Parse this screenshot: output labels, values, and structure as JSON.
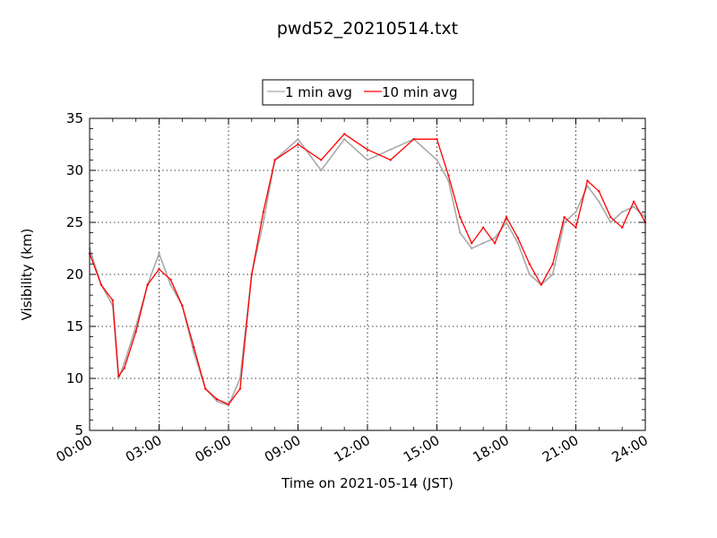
{
  "chart_data": {
    "type": "line",
    "title": "pwd52_20210514.txt",
    "xlabel": "Time on 2021-05-14 (JST)",
    "ylabel": "Visibility (km)",
    "xlim": [
      "00:00",
      "24:00"
    ],
    "ylim": [
      5,
      35
    ],
    "x_ticks": [
      "00:00",
      "03:00",
      "06:00",
      "09:00",
      "12:00",
      "15:00",
      "18:00",
      "21:00",
      "24:00"
    ],
    "y_ticks": [
      "5",
      "10",
      "15",
      "20",
      "25",
      "30",
      "35"
    ],
    "grid": true,
    "legend_position": "top-center",
    "x": [
      "00:00",
      "00:30",
      "01:00",
      "01:15",
      "01:30",
      "02:00",
      "02:30",
      "03:00",
      "03:30",
      "04:00",
      "04:30",
      "05:00",
      "05:30",
      "06:00",
      "06:30",
      "07:00",
      "07:30",
      "08:00",
      "09:00",
      "10:00",
      "11:00",
      "12:00",
      "13:00",
      "14:00",
      "15:00",
      "15:30",
      "16:00",
      "16:30",
      "17:00",
      "17:30",
      "18:00",
      "18:30",
      "19:00",
      "19:30",
      "20:00",
      "20:30",
      "21:00",
      "21:30",
      "22:00",
      "22:30",
      "23:00",
      "23:30",
      "24:00"
    ],
    "series": [
      {
        "name": "1 min avg",
        "color": "#a9a9a9",
        "values": [
          22.5,
          19.0,
          17.0,
          10.0,
          11.5,
          15.0,
          19.0,
          22.0,
          19.0,
          17.0,
          12.5,
          9.0,
          7.8,
          7.4,
          10.0,
          20.0,
          25.0,
          31.0,
          33.0,
          30.0,
          33.0,
          31.0,
          32.0,
          33.0,
          31.0,
          29.0,
          24.0,
          22.5,
          23.0,
          23.5,
          25.0,
          23.0,
          20.0,
          19.0,
          20.0,
          25.0,
          26.0,
          28.5,
          27.0,
          25.0,
          26.0,
          26.5,
          25.5
        ]
      },
      {
        "name": "10 min avg",
        "color": "#ff0000",
        "values": [
          22.0,
          19.0,
          17.5,
          10.2,
          11.0,
          14.5,
          19.0,
          20.5,
          19.5,
          17.0,
          13.0,
          9.0,
          8.0,
          7.5,
          9.0,
          20.0,
          26.0,
          31.0,
          32.5,
          31.0,
          33.5,
          32.0,
          31.0,
          33.0,
          33.0,
          29.5,
          25.5,
          23.0,
          24.5,
          23.0,
          25.5,
          23.5,
          21.0,
          19.0,
          21.0,
          25.5,
          24.5,
          29.0,
          28.0,
          25.5,
          24.5,
          27.0,
          25.0
        ]
      }
    ]
  }
}
